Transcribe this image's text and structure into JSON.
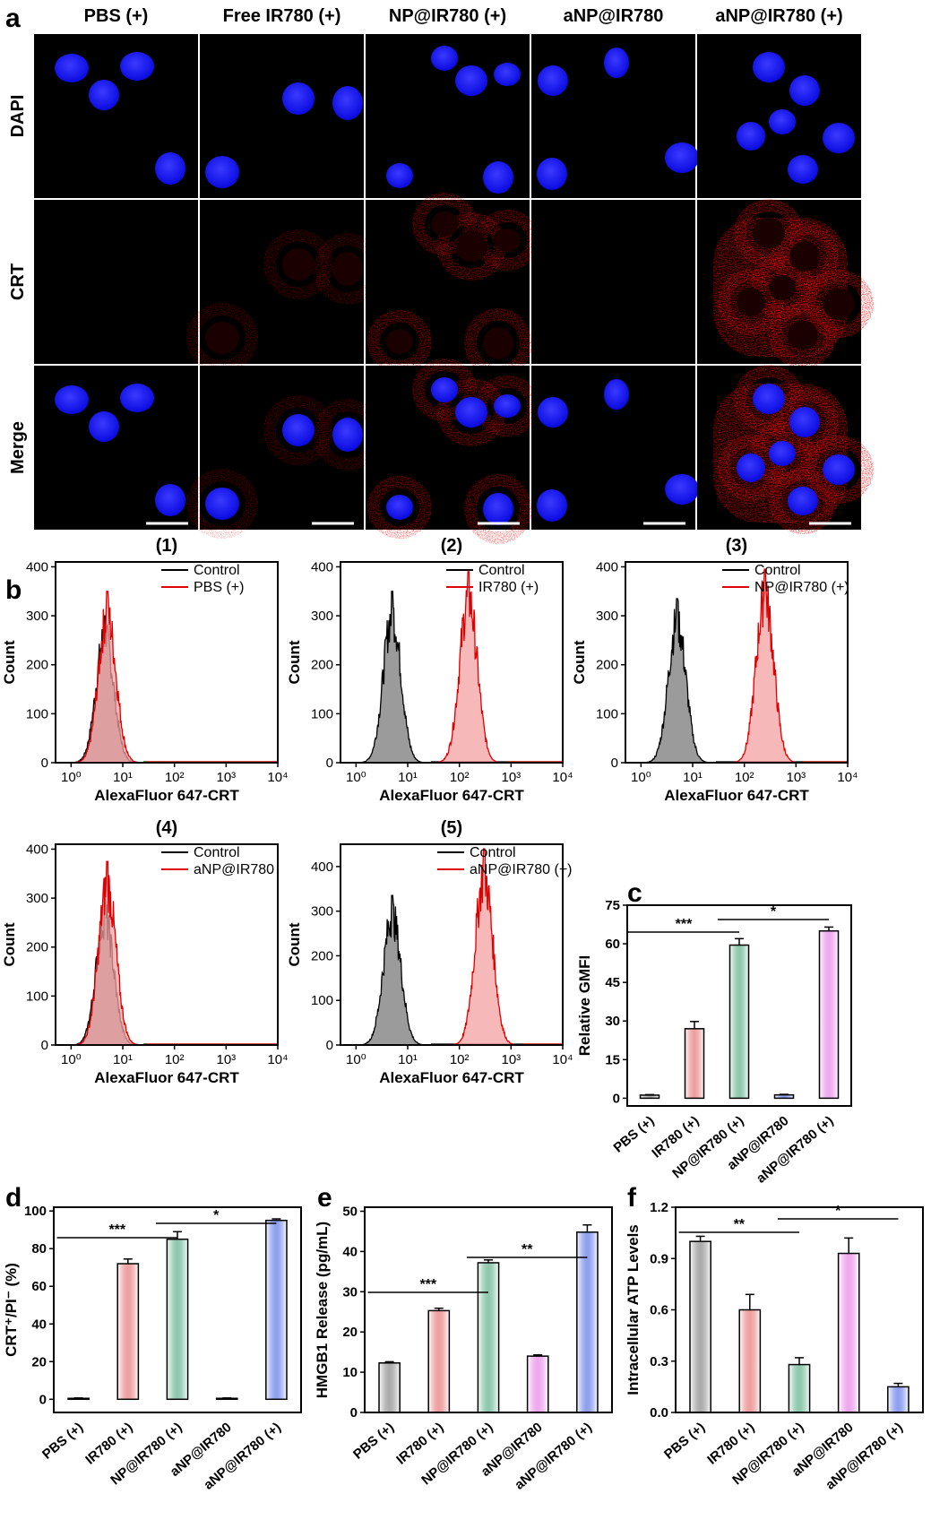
{
  "panels": {
    "a": "a",
    "b": "b",
    "c": "c",
    "d": "d",
    "e": "e",
    "f": "f"
  },
  "microscopy": {
    "columns": [
      "PBS (+)",
      "Free IR780 (+)",
      "NP@IR780 (+)",
      "aNP@IR780",
      "aNP@IR780 (+)"
    ],
    "rows": [
      "DAPI",
      "CRT",
      "Merge"
    ],
    "colors": {
      "nucleus": "#1010ff",
      "crt": "#e00000",
      "background": "#000000"
    }
  },
  "histograms": {
    "xlabel": "AlexaFluor 647-CRT",
    "ylabel": "Count",
    "x_ticks": [
      "10⁰",
      "10¹",
      "10²",
      "10³",
      "10⁴"
    ],
    "control_label": "Control",
    "colors": {
      "control": "#000000",
      "treated": "#e00000",
      "control_fill": "#8a8a8a",
      "treated_fill": "#f3a0a0"
    }
  },
  "chart_data": [
    {
      "id": "b1",
      "type": "area",
      "title": "(1)",
      "xlabel": "AlexaFluor 647-CRT",
      "ylabel": "Count",
      "xscale": "log",
      "xlim": [
        0.5,
        10000
      ],
      "ylim": [
        0,
        410
      ],
      "y_ticks": [
        0,
        100,
        200,
        300,
        400
      ],
      "series": [
        {
          "name": "Control",
          "peak_x": 4.5,
          "peak_y": 300,
          "color": "#000000"
        },
        {
          "name": "PBS (+)",
          "peak_x": 5,
          "peak_y": 350,
          "color": "#e00000"
        }
      ]
    },
    {
      "id": "b2",
      "type": "area",
      "title": "(2)",
      "xlabel": "AlexaFluor 647-CRT",
      "ylabel": "Count",
      "xscale": "log",
      "xlim": [
        0.5,
        10000
      ],
      "ylim": [
        0,
        410
      ],
      "y_ticks": [
        0,
        100,
        200,
        300,
        400
      ],
      "series": [
        {
          "name": "Control",
          "peak_x": 5,
          "peak_y": 350,
          "color": "#000000"
        },
        {
          "name": "IR780 (+)",
          "peak_x": 150,
          "peak_y": 390,
          "color": "#e00000"
        }
      ]
    },
    {
      "id": "b3",
      "type": "area",
      "title": "(3)",
      "xlabel": "AlexaFluor 647-CRT",
      "ylabel": "Count",
      "xscale": "log",
      "xlim": [
        0.5,
        10000
      ],
      "ylim": [
        0,
        410
      ],
      "y_ticks": [
        0,
        100,
        200,
        300,
        400
      ],
      "series": [
        {
          "name": "Control",
          "peak_x": 5,
          "peak_y": 335,
          "color": "#000000"
        },
        {
          "name": "NP@IR780 (+)",
          "peak_x": 250,
          "peak_y": 395,
          "color": "#e00000"
        }
      ]
    },
    {
      "id": "b4",
      "type": "area",
      "title": "(4)",
      "xlabel": "AlexaFluor 647-CRT",
      "ylabel": "Count",
      "xscale": "log",
      "xlim": [
        0.5,
        10000
      ],
      "ylim": [
        0,
        410
      ],
      "y_ticks": [
        0,
        100,
        200,
        300,
        400
      ],
      "series": [
        {
          "name": "Control",
          "peak_x": 4.5,
          "peak_y": 300,
          "color": "#000000"
        },
        {
          "name": "aNP@IR780",
          "peak_x": 5,
          "peak_y": 375,
          "color": "#e00000"
        }
      ]
    },
    {
      "id": "b5",
      "type": "area",
      "title": "(5)",
      "xlabel": "AlexaFluor 647-CRT",
      "ylabel": "Count",
      "xscale": "log",
      "xlim": [
        0.5,
        10000
      ],
      "ylim": [
        0,
        450
      ],
      "y_ticks": [
        0,
        100,
        200,
        300,
        400
      ],
      "series": [
        {
          "name": "Control",
          "peak_x": 5,
          "peak_y": 335,
          "color": "#000000"
        },
        {
          "name": "aNP@IR780 (+)",
          "peak_x": 300,
          "peak_y": 440,
          "color": "#e00000"
        }
      ]
    },
    {
      "id": "c",
      "type": "bar",
      "ylabel": "Relative GMFI",
      "ylim": [
        -3,
        75
      ],
      "y_ticks": [
        0,
        15,
        30,
        45,
        60,
        75
      ],
      "categories": [
        "PBS (+)",
        "IR780 (+)",
        "NP@IR780 (+)",
        "aNP@IR780",
        "aNP@IR780 (+)"
      ],
      "values": [
        1.2,
        27,
        59.5,
        1.3,
        65
      ],
      "errors": [
        0.2,
        2.8,
        2.5,
        0.2,
        1.5
      ],
      "colors": [
        "#666666",
        "#e05050",
        "#2f9a6a",
        "#3050e0",
        "#e060e0"
      ],
      "significance": [
        {
          "from": 0,
          "to": 2,
          "label": "***"
        },
        {
          "from": 2,
          "to": 4,
          "label": "*"
        }
      ]
    },
    {
      "id": "d",
      "type": "bar",
      "ylabel": "CRT⁺/PI⁻ (%)",
      "ylim": [
        -7,
        102
      ],
      "y_ticks": [
        0,
        20,
        40,
        60,
        80,
        100
      ],
      "categories": [
        "PBS (+)",
        "IR780 (+)",
        "NP@IR780 (+)",
        "aNP@IR780",
        "aNP@IR780 (+)"
      ],
      "values": [
        0.5,
        72,
        85,
        0.5,
        95
      ],
      "errors": [
        0.2,
        2.5,
        4,
        0.2,
        0.8
      ],
      "colors": [
        "#666666",
        "#e05050",
        "#2f9a6a",
        "#e060e0",
        "#3050e0"
      ],
      "significance": [
        {
          "from": 0,
          "to": 2,
          "label": "***"
        },
        {
          "from": 2,
          "to": 4,
          "label": "*"
        }
      ]
    },
    {
      "id": "e",
      "type": "bar",
      "ylabel": "HMGB1 Release (pg/mL)",
      "ylim": [
        0,
        51
      ],
      "y_ticks": [
        0,
        10,
        20,
        30,
        40,
        50
      ],
      "categories": [
        "PBS (+)",
        "IR780 (+)",
        "NP@IR780 (+)",
        "aNP@IR780",
        "aNP@IR780 (+)"
      ],
      "values": [
        12.3,
        25.3,
        37.2,
        14,
        44.8
      ],
      "errors": [
        0.3,
        0.6,
        0.7,
        0.3,
        1.8
      ],
      "colors": [
        "#666666",
        "#e05050",
        "#2f9a6a",
        "#e060e0",
        "#3050e0"
      ],
      "significance": [
        {
          "from": 0,
          "to": 2,
          "label": "***"
        },
        {
          "from": 2,
          "to": 4,
          "label": "**"
        }
      ]
    },
    {
      "id": "f",
      "type": "bar",
      "ylabel": "Intracellular ATP Levels",
      "ylim": [
        0,
        1.2
      ],
      "y_ticks": [
        0.0,
        0.3,
        0.6,
        0.9,
        1.2
      ],
      "categories": [
        "PBS (+)",
        "IR780 (+)",
        "NP@IR780 (+)",
        "aNP@IR780",
        "aNP@IR780 (+)"
      ],
      "values": [
        1.0,
        0.6,
        0.28,
        0.93,
        0.15
      ],
      "errors": [
        0.03,
        0.09,
        0.04,
        0.09,
        0.02
      ],
      "colors": [
        "#666666",
        "#e05050",
        "#2f9a6a",
        "#e060e0",
        "#3050e0"
      ],
      "significance": [
        {
          "from": 0,
          "to": 2,
          "label": "**"
        },
        {
          "from": 2,
          "to": 4,
          "label": "*"
        }
      ]
    }
  ]
}
